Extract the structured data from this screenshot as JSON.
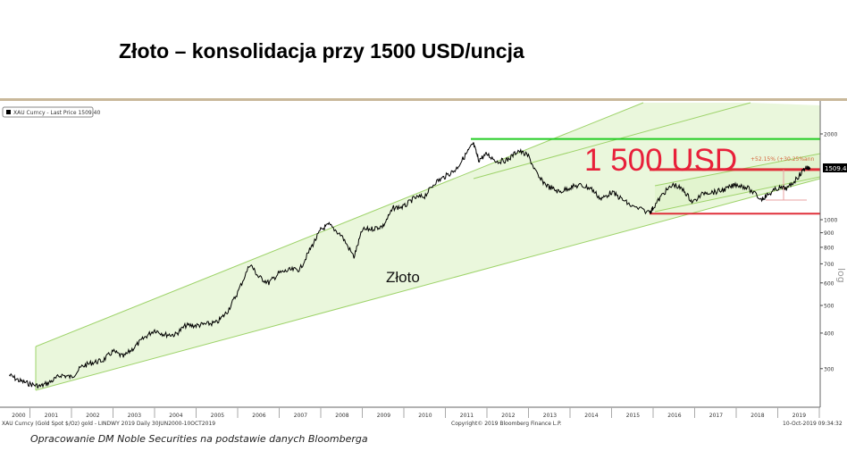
{
  "title": "Złoto – konsolidacja przy 1500 USD/uncja",
  "footer": "Opracowanie DM Noble Securities na podstawie danych Bloomberga",
  "colors": {
    "price": "#000000",
    "channel_fill": "#eaf7dc",
    "channel_line": "#9ed36a",
    "resistance": "#22cc22",
    "level_red": "#e0303a",
    "annotation": "#e8203a"
  },
  "chart_data": {
    "type": "line",
    "title": "XAU Curncy - Last Price 1509.40",
    "legend": "XAU Curncy - Last Price 1509.40",
    "legend_position": "top-left",
    "y_scale": "log",
    "ylabel": "log",
    "ylim": [
      240,
      2300
    ],
    "yticks": [
      300,
      400,
      500,
      600,
      700,
      800,
      900,
      1000,
      2000
    ],
    "xlim": [
      2000.5,
      2019.9
    ],
    "xticks": [
      "2000",
      "2001",
      "2002",
      "2003",
      "2004",
      "2005",
      "2006",
      "2007",
      "2008",
      "2009",
      "2010",
      "2011",
      "2012",
      "2013",
      "2014",
      "2015",
      "2016",
      "2017",
      "2018",
      "2019"
    ],
    "last_price_label": "1509.40",
    "annotations": {
      "big_label": "1 500 USD",
      "series_label": "Złoto",
      "pct_label": "+52.15% (+30.25%ann"
    },
    "source_left": "XAU Curncy (Gold Spot  $/Oz) gold - LINDWY 2019  Daily 30JUN2000-10OCT2019",
    "source_mid": "Copyright© 2019 Bloomberg Finance L.P.",
    "source_right": "10-Oct-2019 09:34:32",
    "levels": {
      "resistance": 1920,
      "price_level": 1500,
      "support": 1050
    },
    "series": [
      {
        "name": "XAU Curncy",
        "x": [
          2000.5,
          2000.75,
          2001.0,
          2001.25,
          2001.5,
          2001.75,
          2002.0,
          2002.25,
          2002.5,
          2002.75,
          2003.0,
          2003.25,
          2003.5,
          2003.75,
          2004.0,
          2004.25,
          2004.5,
          2004.75,
          2005.0,
          2005.25,
          2005.5,
          2005.75,
          2006.0,
          2006.3,
          2006.5,
          2006.75,
          2007.0,
          2007.25,
          2007.5,
          2007.75,
          2008.0,
          2008.2,
          2008.5,
          2008.8,
          2009.0,
          2009.25,
          2009.5,
          2009.75,
          2010.0,
          2010.25,
          2010.5,
          2010.75,
          2011.0,
          2011.25,
          2011.5,
          2011.67,
          2011.8,
          2012.0,
          2012.25,
          2012.5,
          2012.75,
          2013.0,
          2013.25,
          2013.5,
          2013.75,
          2014.0,
          2014.25,
          2014.5,
          2014.75,
          2015.0,
          2015.25,
          2015.5,
          2015.92,
          2016.0,
          2016.25,
          2016.5,
          2016.75,
          2016.95,
          2017.25,
          2017.5,
          2017.75,
          2018.0,
          2018.25,
          2018.6,
          2018.75,
          2019.0,
          2019.25,
          2019.5,
          2019.67,
          2019.78
        ],
        "values": [
          285,
          272,
          265,
          260,
          270,
          285,
          280,
          305,
          315,
          320,
          345,
          330,
          355,
          385,
          410,
          395,
          395,
          425,
          425,
          430,
          435,
          475,
          555,
          700,
          630,
          600,
          650,
          665,
          670,
          790,
          920,
          960,
          880,
          740,
          920,
          930,
          950,
          1100,
          1110,
          1190,
          1210,
          1350,
          1420,
          1500,
          1700,
          1850,
          1620,
          1700,
          1600,
          1620,
          1750,
          1670,
          1400,
          1300,
          1250,
          1300,
          1320,
          1290,
          1180,
          1250,
          1180,
          1110,
          1060,
          1100,
          1240,
          1330,
          1260,
          1150,
          1250,
          1250,
          1280,
          1330,
          1300,
          1180,
          1220,
          1290,
          1290,
          1420,
          1530,
          1509
        ]
      }
    ]
  }
}
